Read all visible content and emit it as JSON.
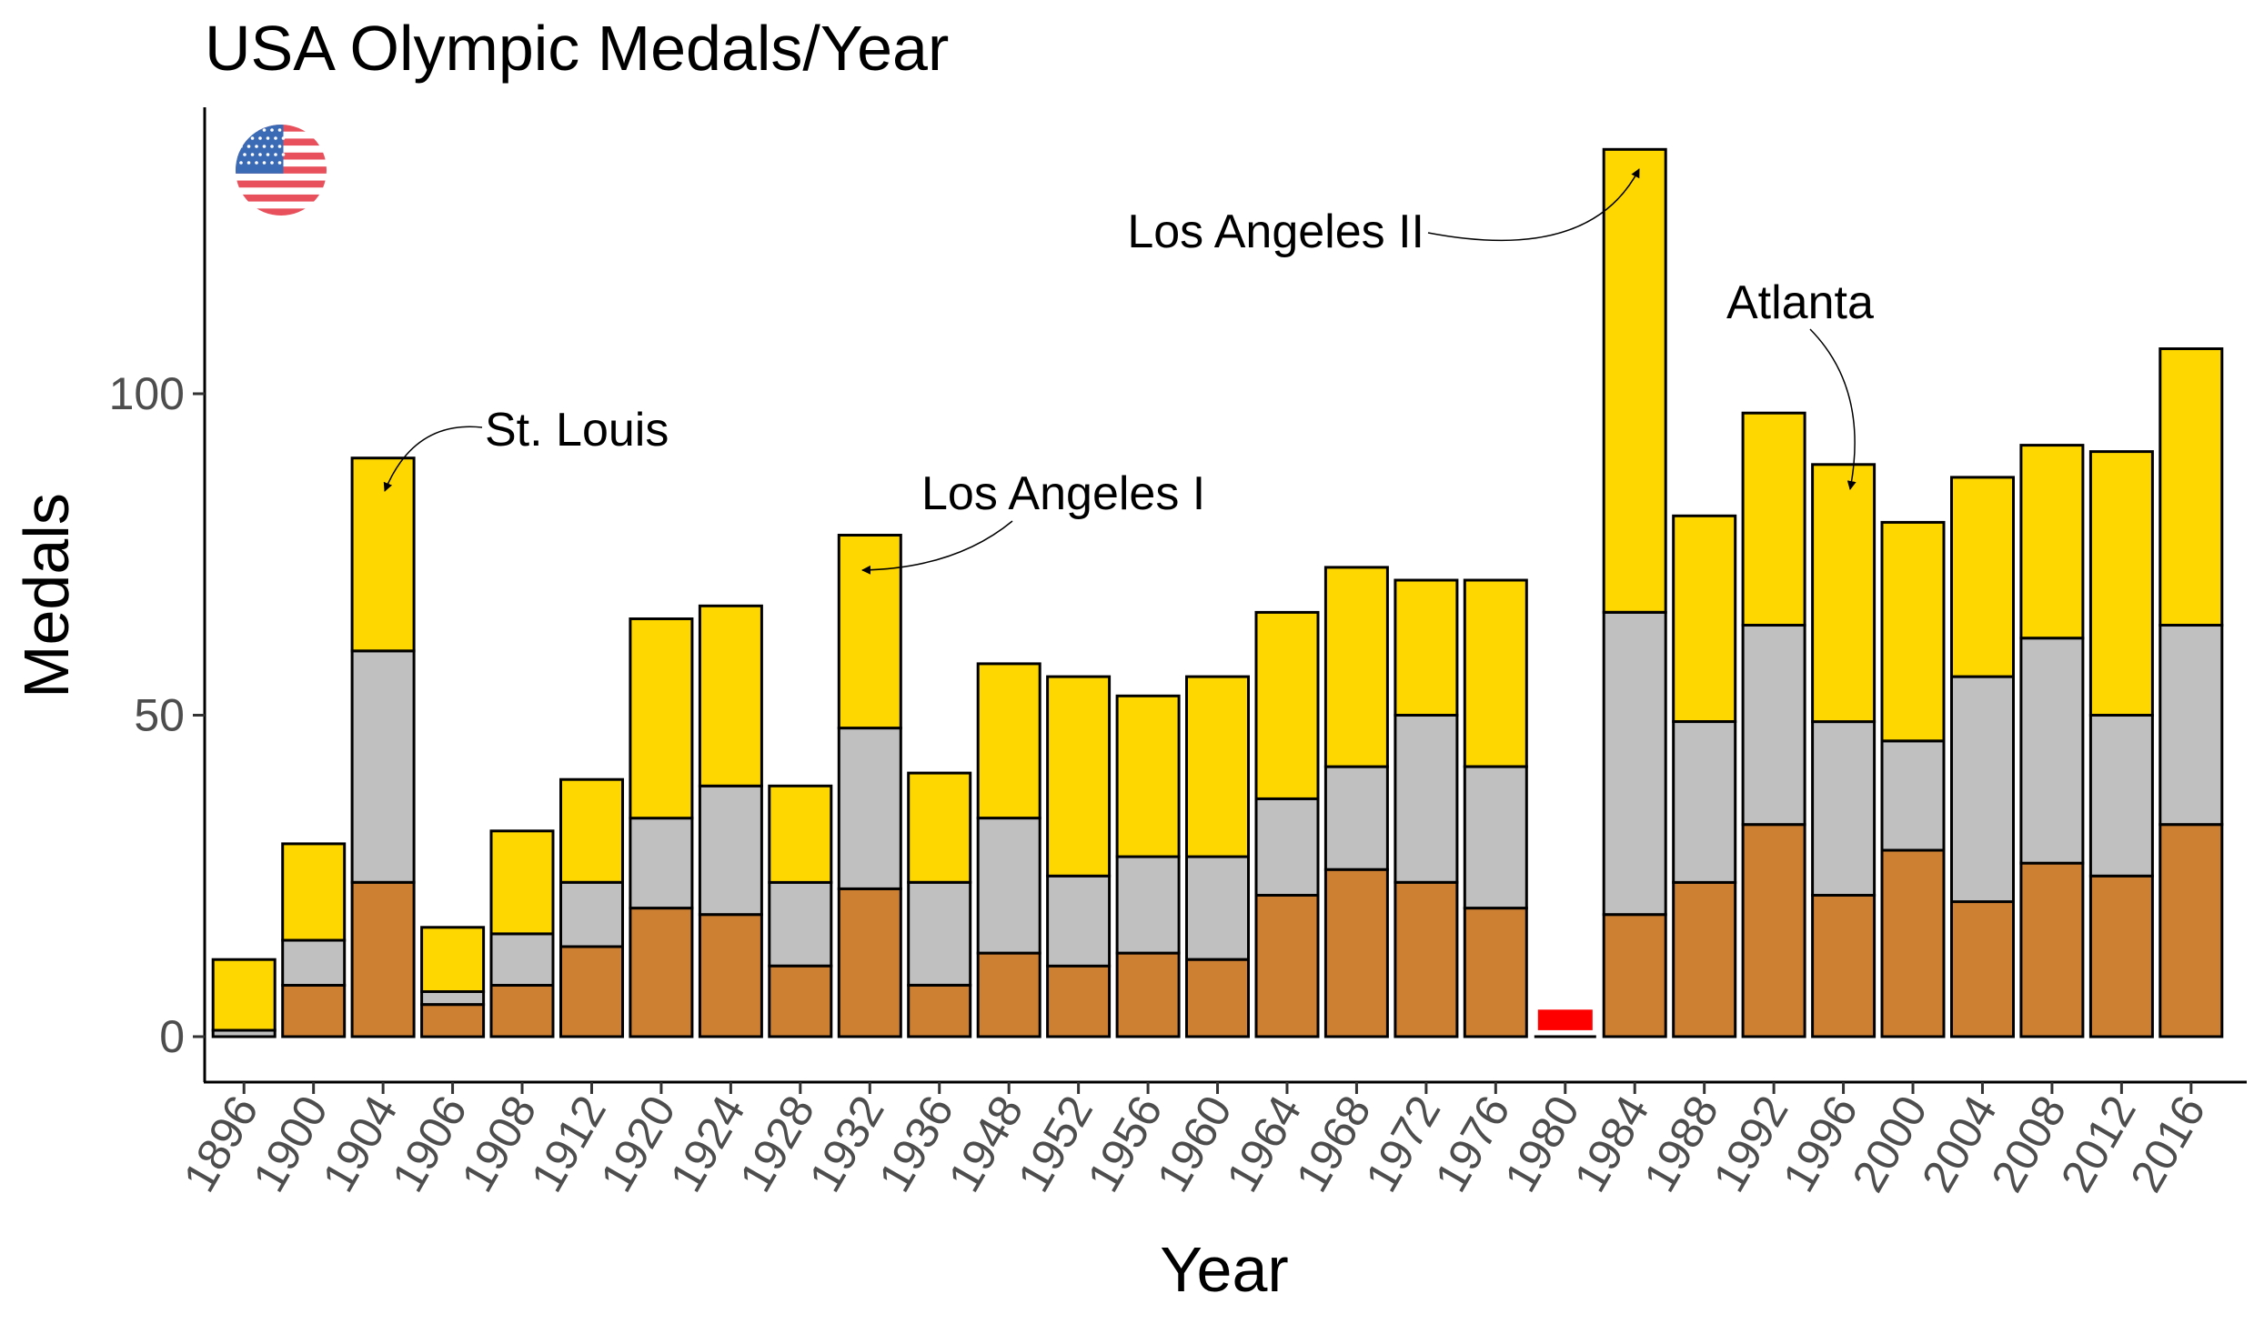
{
  "chart_data": {
    "type": "bar",
    "stacked": true,
    "title": "USA Olympic Medals/Year",
    "xlabel": "Year",
    "ylabel": "Medals",
    "ylim": [
      0,
      140
    ],
    "yticks": [
      0,
      50,
      100
    ],
    "grid": false,
    "legend": "none",
    "categories": [
      "1896",
      "1900",
      "1904",
      "1906",
      "1908",
      "1912",
      "1920",
      "1924",
      "1928",
      "1932",
      "1936",
      "1948",
      "1952",
      "1956",
      "1960",
      "1964",
      "1968",
      "1972",
      "1976",
      "1980",
      "1984",
      "1988",
      "1992",
      "1996",
      "2000",
      "2004",
      "2008",
      "2012",
      "2016"
    ],
    "series": [
      {
        "color": "#cd7f32",
        "values": [
          0,
          8,
          24,
          5,
          8,
          14,
          20,
          19,
          11,
          23,
          8,
          13,
          11,
          13,
          12,
          22,
          26,
          24,
          20,
          0,
          19,
          24,
          33,
          22,
          29,
          21,
          27,
          25,
          33
        ]
      },
      {
        "color": "#c0c0c0",
        "values": [
          1,
          7,
          36,
          2,
          8,
          10,
          14,
          20,
          13,
          25,
          16,
          21,
          14,
          15,
          16,
          15,
          16,
          26,
          22,
          0,
          47,
          25,
          31,
          27,
          17,
          35,
          35,
          25,
          31
        ]
      },
      {
        "color": "#ffd700",
        "values": [
          11,
          15,
          30,
          10,
          16,
          16,
          31,
          28,
          15,
          30,
          17,
          24,
          31,
          25,
          28,
          29,
          31,
          21,
          29,
          0,
          72,
          32,
          33,
          40,
          34,
          31,
          30,
          41,
          43
        ]
      }
    ],
    "boycott_marker": {
      "category": "1980",
      "color": "#ff0000"
    },
    "annotations": [
      {
        "label": "St. Louis",
        "category": "1904"
      },
      {
        "label": "Los Angeles I",
        "category": "1932"
      },
      {
        "label": "Los Angeles II",
        "category": "1984"
      },
      {
        "label": "Atlanta",
        "category": "1996"
      }
    ],
    "flag": {
      "icon": "usa-flag-icon",
      "colors": {
        "blue": "#3c6bb5",
        "red": "#e8505b",
        "white": "#ffffff"
      }
    }
  }
}
